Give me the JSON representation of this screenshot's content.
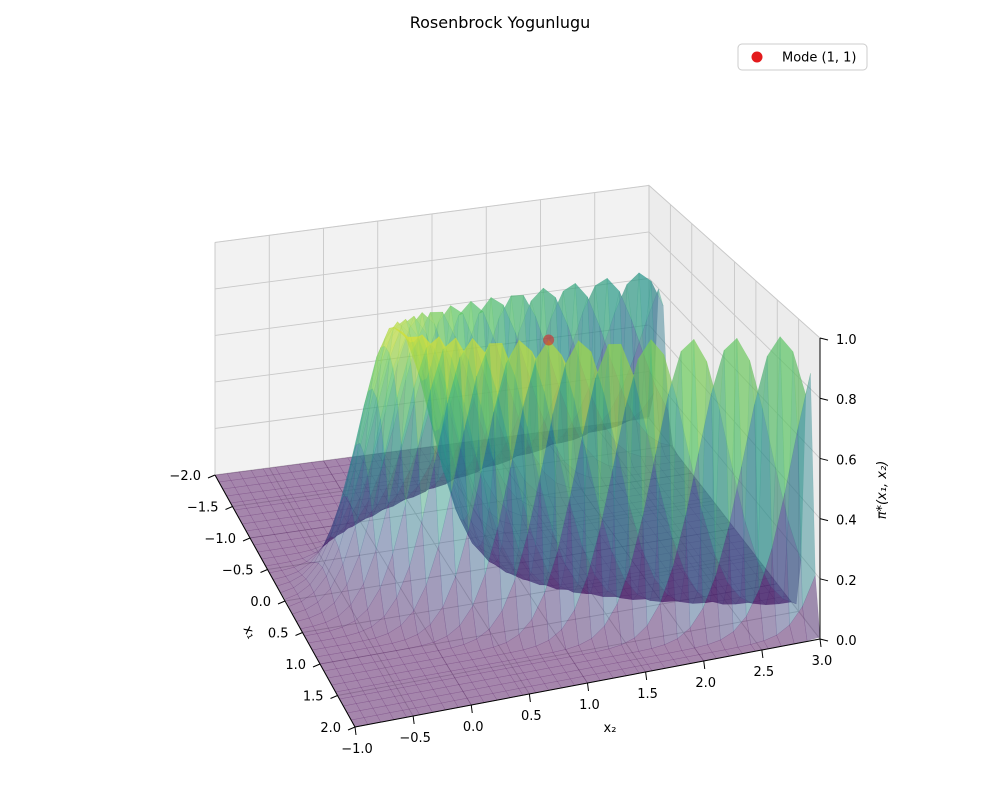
{
  "chart_data": {
    "type": "surface",
    "title": "Rosenbrock Yogunlugu",
    "xlabel": "x₁",
    "ylabel": "x₂",
    "zlabel": "π*(x₁, x₂)",
    "xlim": [
      -2.0,
      2.0
    ],
    "ylim": [
      -1.0,
      3.0
    ],
    "zlim": [
      0.0,
      1.0
    ],
    "x_ticks": [
      "−2.0",
      "−1.5",
      "−1.0",
      "−0.5",
      "0.0",
      "0.5",
      "1.0",
      "1.5",
      "2.0"
    ],
    "y_ticks": [
      "−1.0",
      "−0.5",
      "0.0",
      "0.5",
      "1.0",
      "1.5",
      "2.0",
      "2.5",
      "3.0"
    ],
    "z_ticks": [
      "0.0",
      "0.2",
      "0.4",
      "0.6",
      "0.8",
      "1.0"
    ],
    "colormap": "viridis",
    "surface_alpha": 0.45,
    "grid": true,
    "legend_position": "top-right",
    "points": [
      {
        "name": "Mode (1, 1)",
        "x": 1.0,
        "y": 1.0,
        "z": 1.0,
        "color": "#e31a1c"
      }
    ]
  }
}
